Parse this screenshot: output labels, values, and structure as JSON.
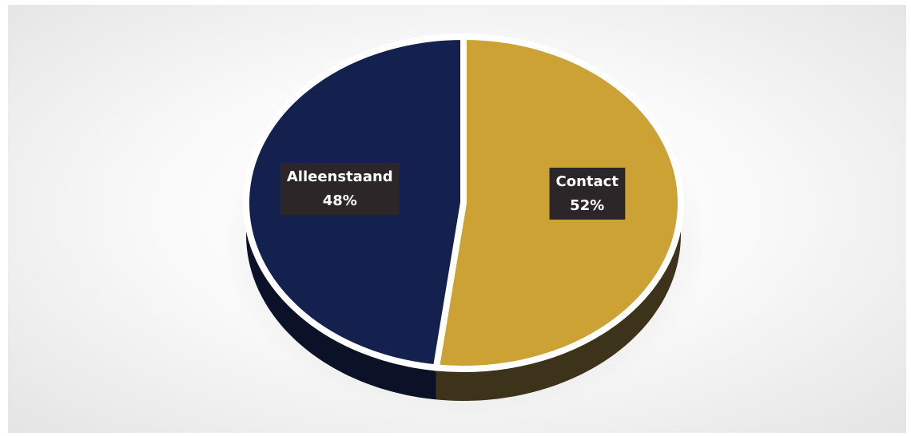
{
  "chart_data": {
    "type": "pie",
    "title": "",
    "three_d": true,
    "slices": [
      {
        "label": "Alleenstaand",
        "value": 48,
        "value_label": "48%",
        "color": "#14214f",
        "side_color": "#0b1228"
      },
      {
        "label": "Contact",
        "value": 52,
        "value_label": "52%",
        "color": "#cda235",
        "side_color": "#3d321a"
      }
    ]
  }
}
